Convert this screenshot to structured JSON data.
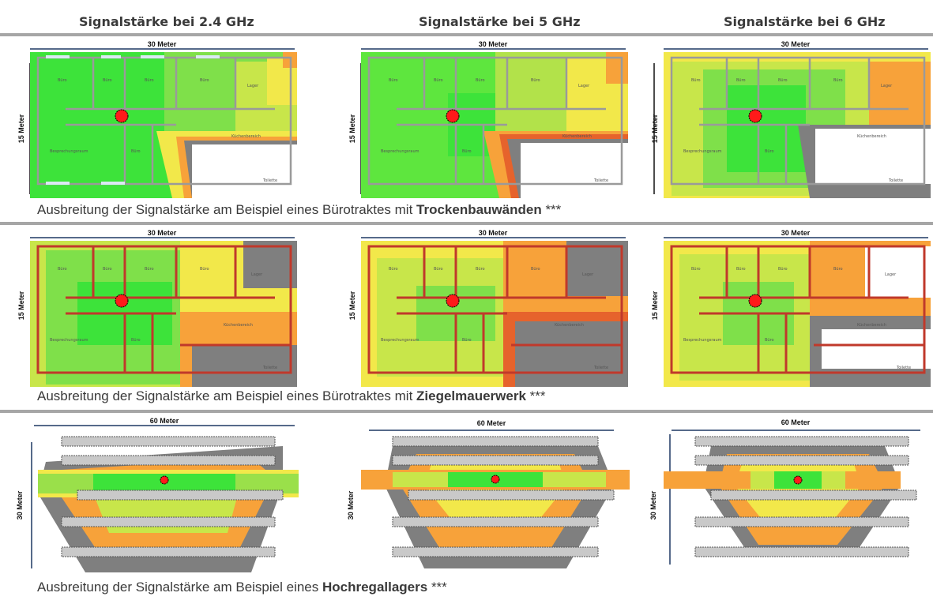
{
  "columns": [
    {
      "title": "Signalstärke  bei 2.4 GHz"
    },
    {
      "title": "Signalstärke  bei 5 GHz"
    },
    {
      "title": "Signalstärke  bei 6 GHz"
    }
  ],
  "rows": [
    {
      "caption_prefix": "Ausbreitung der Signalstärke am Beispiel eines Bürotraktes mit ",
      "caption_bold": "Trockenbauwänden",
      "caption_suffix": " ***",
      "width_label": "30 Meter",
      "height_label": "15 Meter",
      "wall_color": "#9a9a9a",
      "room_labels": [
        "Büro",
        "Büro",
        "Büro",
        "Büro",
        "Lager",
        "Besprechungsraum",
        "Büro",
        "Küchenbereich",
        "Toilette"
      ]
    },
    {
      "caption_prefix": "Ausbreitung der Signalstärke am Beispiel eines Bürotraktes mit ",
      "caption_bold": "Ziegelmauerwerk",
      "caption_suffix": " ***",
      "width_label": "30 Meter",
      "height_label": "15 Meter",
      "wall_color": "#c0392b",
      "room_labels": [
        "Büro",
        "Büro",
        "Büro",
        "Büro",
        "Lager",
        "Besprechungsraum",
        "Büro",
        "Küchenbereich",
        "Toilette"
      ]
    },
    {
      "caption_prefix": "Ausbreitung der Signalstärke am Beispiel eines ",
      "caption_bold": "Hochregallagers",
      "caption_suffix": " ***",
      "width_label": "60 Meter",
      "height_label": "30 Meter"
    }
  ],
  "colors": {
    "strong": "#3de33a",
    "good": "#9ae04a",
    "medium": "#f2e84a",
    "weak": "#f7a23a",
    "poor": "#e6632c",
    "none": "#7f7f7f",
    "access_point": "#ff1a1a"
  }
}
